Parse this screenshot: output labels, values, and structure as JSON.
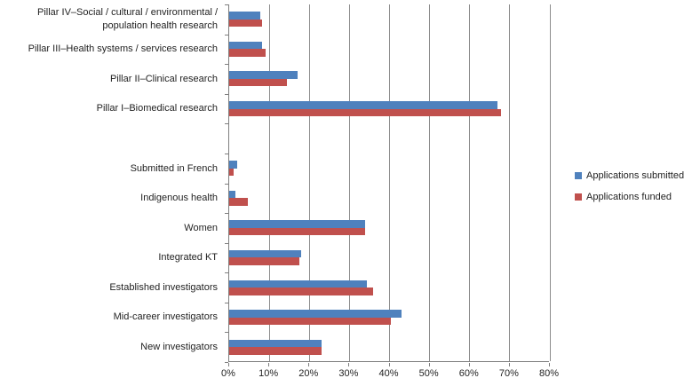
{
  "chart_data": {
    "type": "bar",
    "orientation": "horizontal",
    "title": "",
    "categories": [
      "Pillar IV–Social / cultural / environmental / population health research",
      "Pillar III–Health systems / services research",
      "Pillar II–Clinical research",
      "Pillar I–Biomedical research",
      "",
      "Submitted in French",
      "Indigenous health",
      "Women",
      "Integrated KT",
      "Established investigators",
      "Mid-career investigators",
      "New investigators"
    ],
    "series": [
      {
        "name": "Applications submitted",
        "color": "#4F81BD",
        "values": [
          7.8,
          8.3,
          17,
          67,
          null,
          2,
          1.5,
          34,
          18,
          34.5,
          43,
          23
        ]
      },
      {
        "name": "Applications funded",
        "color": "#C0504D",
        "values": [
          8.3,
          9.2,
          14.5,
          68,
          null,
          1,
          4.7,
          34,
          17.5,
          36,
          40.5,
          23
        ]
      }
    ],
    "xlim": [
      0,
      80
    ],
    "x_tick_labels": [
      "0%",
      "10%",
      "20%",
      "30%",
      "40%",
      "50%",
      "60%",
      "70%",
      "80%"
    ],
    "grid": true,
    "legend_position": "right",
    "colors": {
      "gridline": "#8c8c8c",
      "axis": "#7f7f7f",
      "text": "#1f1f1f"
    }
  }
}
